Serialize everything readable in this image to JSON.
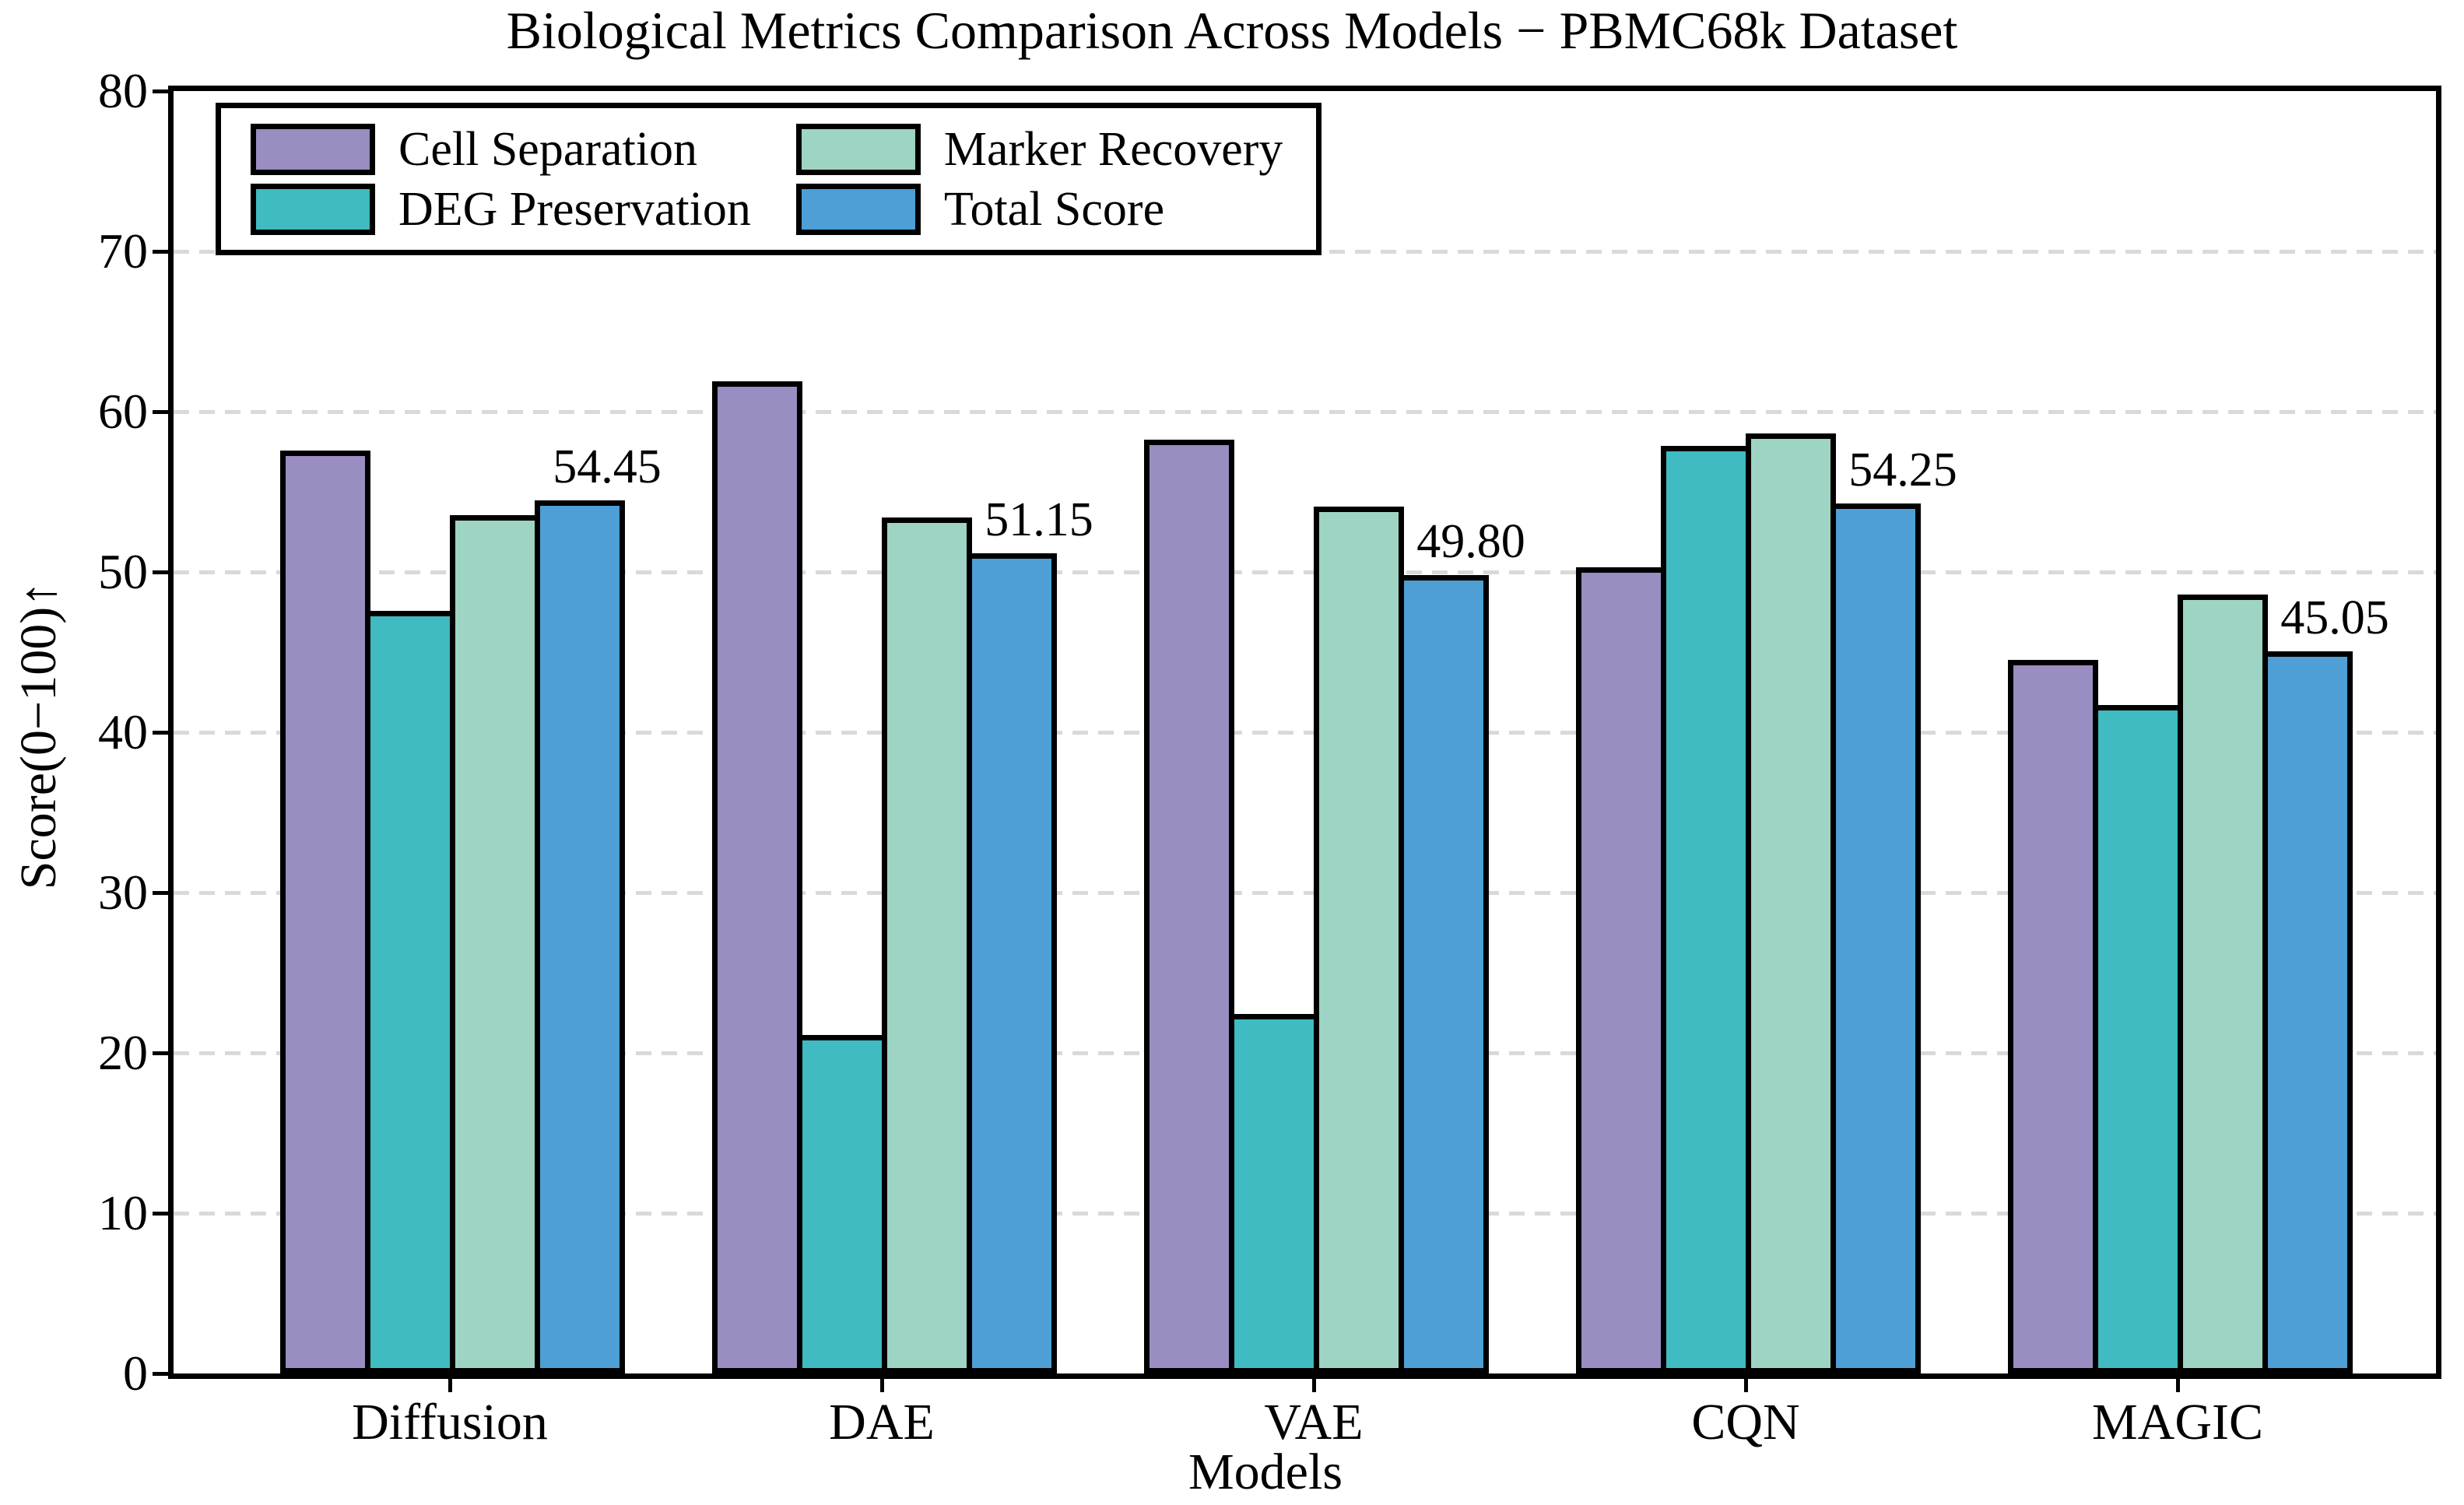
{
  "title": "Biological Metrics Comparison Across Models − PBMC68k Dataset",
  "axes": {
    "xlabel": "Models",
    "ylabel": "Score(0−100)↑",
    "y_tick_labels": [
      "0",
      "10",
      "20",
      "30",
      "40",
      "50",
      "60",
      "70",
      "80"
    ],
    "ymin": 0,
    "ymax": 80
  },
  "legend": {
    "items": [
      {
        "label": "Cell Separation",
        "color": "#9a8dc1"
      },
      {
        "label": "DEG Preservation",
        "color": "#3fbbc1"
      },
      {
        "label": "Marker Recovery",
        "color": "#9ed4c4"
      },
      {
        "label": "Total Score",
        "color": "#4d9fd5"
      }
    ]
  },
  "chart_data": {
    "type": "bar",
    "categories": [
      "Diffusion",
      "DAE",
      "VAE",
      "CQN",
      "MAGIC"
    ],
    "series": [
      {
        "name": "Cell Separation",
        "color": "#9a8dc1",
        "values": [
          57.55,
          61.9,
          58.25,
          50.3,
          44.5
        ]
      },
      {
        "name": "DEG Preservation",
        "color": "#3fbbc1",
        "values": [
          47.55,
          21.1,
          22.45,
          57.85,
          41.7
        ]
      },
      {
        "name": "Marker Recovery",
        "color": "#9ed4c4",
        "values": [
          53.55,
          53.4,
          54.1,
          58.65,
          48.6
        ]
      },
      {
        "name": "Total Score",
        "color": "#4d9fd5",
        "values": [
          54.45,
          51.15,
          49.8,
          54.25,
          45.05
        ],
        "value_labels": [
          "54.45",
          "51.15",
          "49.80",
          "54.25",
          "45.05"
        ]
      }
    ],
    "title": "Biological Metrics Comparison Across Models − PBMC68k Dataset",
    "xlabel": "Models",
    "ylabel": "Score(0−100)↑",
    "ylim": [
      0,
      80
    ],
    "grid": {
      "axis": "y",
      "style": "dashed",
      "color": "#d9d9d9"
    },
    "legend_position": "upper left",
    "bar_edge_color": "#000000"
  }
}
